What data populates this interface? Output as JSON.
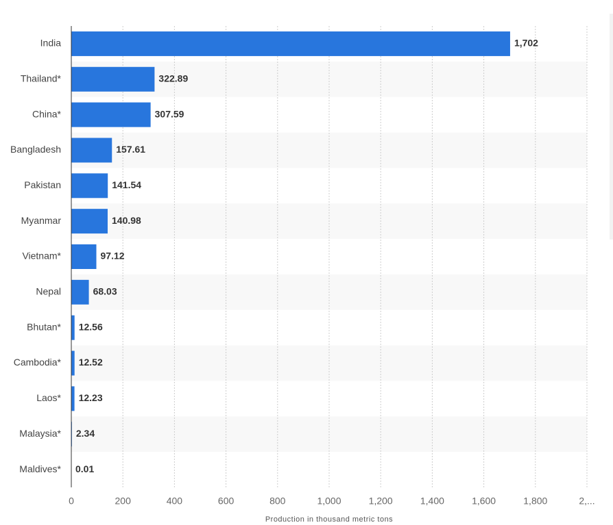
{
  "chart_data": {
    "type": "bar",
    "orientation": "horizontal",
    "categories": [
      "India",
      "Thailand*",
      "China*",
      "Bangladesh",
      "Pakistan",
      "Myanmar",
      "Vietnam*",
      "Nepal",
      "Bhutan*",
      "Cambodia*",
      "Laos*",
      "Malaysia*",
      "Maldives*"
    ],
    "values": [
      1702,
      322.89,
      307.59,
      157.61,
      141.54,
      140.98,
      97.12,
      68.03,
      12.56,
      12.52,
      12.23,
      2.34,
      0.01
    ],
    "value_labels": [
      "1,702",
      "322.89",
      "307.59",
      "157.61",
      "141.54",
      "140.98",
      "97.12",
      "68.03",
      "12.56",
      "12.52",
      "12.23",
      "2.34",
      "0.01"
    ],
    "color": "#2876dd",
    "xlim": [
      0,
      2000
    ],
    "xticks": [
      0,
      200,
      400,
      600,
      800,
      {
        "value": 1000,
        "label": "1,000"
      },
      {
        "value": 1200,
        "label": "1,200"
      },
      {
        "value": 1400,
        "label": "1,400"
      },
      {
        "value": 1600,
        "label": "1,600"
      },
      {
        "value": 1800,
        "label": "1,800"
      },
      {
        "value": 2000,
        "label": "2,..."
      }
    ],
    "xlabel": "Production in thousand metric tons",
    "grid": true
  }
}
